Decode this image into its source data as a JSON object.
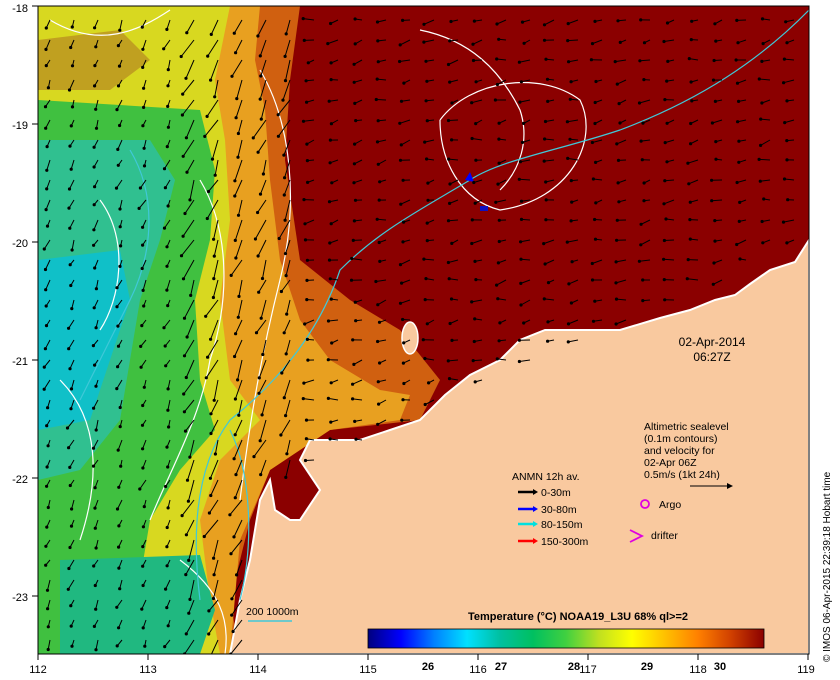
{
  "map": {
    "lon_ticks": [
      "112",
      "113",
      "114",
      "115",
      "116",
      "117",
      "118",
      "119"
    ],
    "lat_ticks": [
      "-18",
      "-19",
      "-20",
      "-21",
      "-22",
      "-23"
    ],
    "colors": {
      "warm": "#8b0000",
      "land": "#f9c99f",
      "coast": "#ffffff",
      "contour_white": "#ffffff",
      "contour_cyan": "#40c8d8"
    }
  },
  "datetime": {
    "date": "02-Apr-2014",
    "time": "06:27Z"
  },
  "altimetry_note": {
    "line1": "Altimetric sealevel",
    "line2": "(0.1m contours)",
    "line3": "and velocity for",
    "line4": "02-Apr 06Z",
    "line5": "0.5m/s (1kt 24h)"
  },
  "legend": {
    "title": "ANMN 12h av.",
    "items": [
      {
        "label": "0-30m",
        "color": "#000000"
      },
      {
        "label": "30-80m",
        "color": "#0000ff"
      },
      {
        "label": "80-150m",
        "color": "#00e0e0"
      },
      {
        "label": "150-300m",
        "color": "#ff0000"
      }
    ],
    "argo_label": "Argo",
    "argo_color": "#e000e0",
    "drifter_label": "drifter",
    "drifter_color": "#e000e0"
  },
  "isobath": {
    "label": "200  1000m",
    "color": "#40c8d8"
  },
  "colorbar": {
    "title": "Temperature (°C) NOAA19_L3U 68% ql>=2",
    "ticks": [
      "26",
      "27",
      "28",
      "29",
      "30"
    ],
    "stops": [
      "#00007f",
      "#0000ff",
      "#0080ff",
      "#00e0ff",
      "#00c0a0",
      "#00c060",
      "#40d040",
      "#c0e020",
      "#ffff00",
      "#ffc000",
      "#ff8000",
      "#d04000",
      "#8b0000"
    ]
  },
  "credit": "© IMOS 06-Apr-2015 22:39:18 Hobart time"
}
